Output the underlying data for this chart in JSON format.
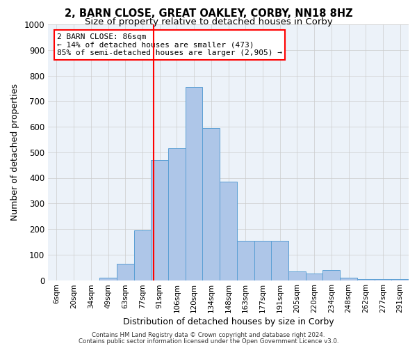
{
  "title_line1": "2, BARN CLOSE, GREAT OAKLEY, CORBY, NN18 8HZ",
  "title_line2": "Size of property relative to detached houses in Corby",
  "xlabel": "Distribution of detached houses by size in Corby",
  "ylabel": "Number of detached properties",
  "bin_labels": [
    "6sqm",
    "20sqm",
    "34sqm",
    "49sqm",
    "63sqm",
    "77sqm",
    "91sqm",
    "106sqm",
    "120sqm",
    "134sqm",
    "148sqm",
    "163sqm",
    "177sqm",
    "191sqm",
    "205sqm",
    "220sqm",
    "234sqm",
    "248sqm",
    "262sqm",
    "277sqm",
    "291sqm"
  ],
  "bar_heights": [
    0,
    0,
    0,
    10,
    65,
    195,
    470,
    515,
    755,
    595,
    385,
    155,
    155,
    155,
    35,
    25,
    40,
    10,
    5,
    5,
    5
  ],
  "bar_color": "#aec6e8",
  "bar_edge_color": "#5a9fd4",
  "vline_color": "red",
  "property_sqm": 86,
  "annotation_text": "2 BARN CLOSE: 86sqm\n← 14% of detached houses are smaller (473)\n85% of semi-detached houses are larger (2,905) →",
  "ylim": [
    0,
    1000
  ],
  "yticks": [
    0,
    100,
    200,
    300,
    400,
    500,
    600,
    700,
    800,
    900,
    1000
  ],
  "grid_color": "#cccccc",
  "background_color": "#ecf2f9",
  "footer_line1": "Contains HM Land Registry data © Crown copyright and database right 2024.",
  "footer_line2": "Contains public sector information licensed under the Open Government Licence v3.0."
}
